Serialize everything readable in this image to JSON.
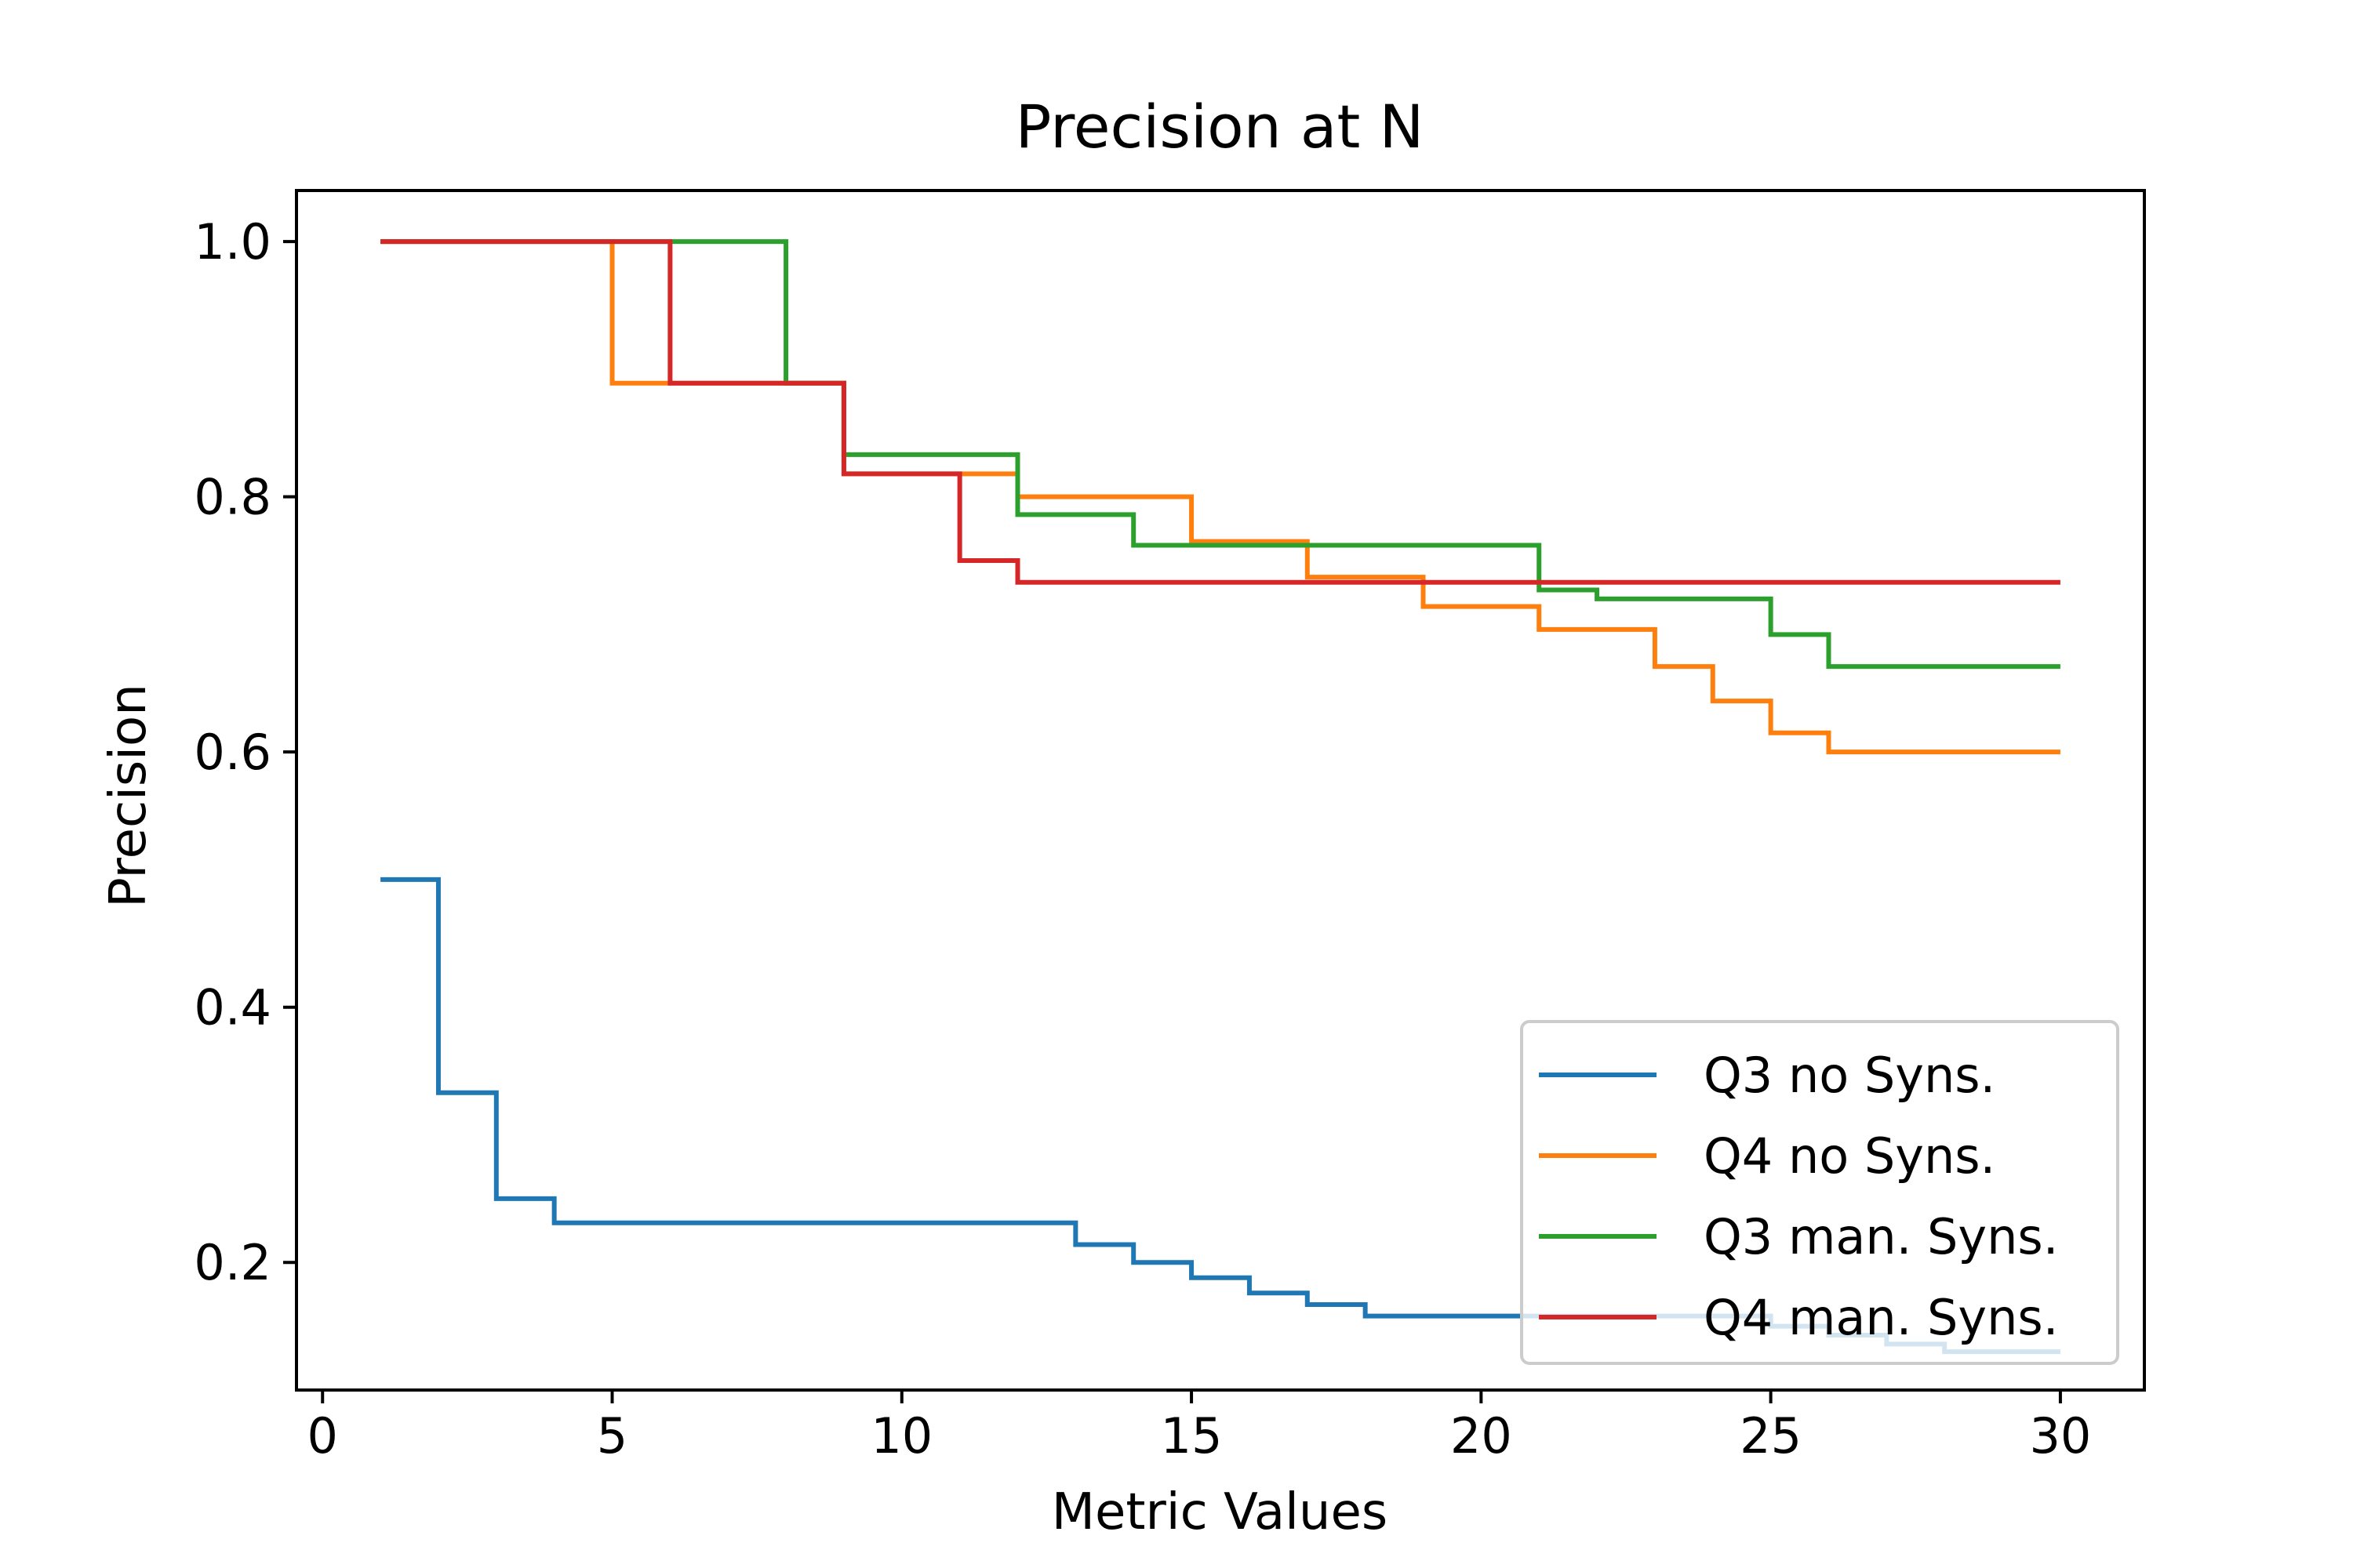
{
  "chart_data": {
    "type": "line",
    "drawstyle": "steps-post",
    "title": "Precision at N",
    "xlabel": "Metric Values",
    "ylabel": "Precision",
    "xlim": [
      -0.45,
      31.45
    ],
    "ylim": [
      0.1,
      1.04
    ],
    "xticks": [
      0,
      5,
      10,
      15,
      20,
      25,
      30
    ],
    "yticks": [
      0.2,
      0.4,
      0.6,
      0.8,
      1.0
    ],
    "x": [
      1,
      2,
      3,
      4,
      5,
      6,
      7,
      8,
      9,
      10,
      11,
      12,
      13,
      14,
      15,
      16,
      17,
      18,
      19,
      20,
      21,
      22,
      23,
      24,
      25,
      26,
      27,
      28,
      29,
      30
    ],
    "series": [
      {
        "name": "Q3 no Syns.",
        "color": "#1f77b4",
        "values": [
          0.5,
          0.333,
          0.25,
          0.231,
          0.231,
          0.231,
          0.231,
          0.231,
          0.231,
          0.231,
          0.231,
          0.231,
          0.214,
          0.2,
          0.188,
          0.176,
          0.167,
          0.158,
          0.158,
          0.158,
          0.158,
          0.158,
          0.158,
          0.158,
          0.15,
          0.143,
          0.136,
          0.13,
          0.13,
          0.13
        ]
      },
      {
        "name": "Q4 no Syns.",
        "color": "#ff7f0e",
        "values": [
          1.0,
          1.0,
          1.0,
          1.0,
          0.889,
          0.889,
          0.889,
          0.889,
          0.818,
          0.818,
          0.818,
          0.8,
          0.8,
          0.8,
          0.765,
          0.765,
          0.737,
          0.737,
          0.714,
          0.714,
          0.696,
          0.696,
          0.667,
          0.64,
          0.615,
          0.6,
          0.6,
          0.6,
          0.6,
          0.6
        ]
      },
      {
        "name": "Q3 man. Syns.",
        "color": "#2ca02c",
        "values": [
          1.0,
          1.0,
          1.0,
          1.0,
          1.0,
          1.0,
          1.0,
          0.889,
          0.833,
          0.833,
          0.833,
          0.786,
          0.786,
          0.762,
          0.762,
          0.762,
          0.762,
          0.762,
          0.762,
          0.762,
          0.727,
          0.72,
          0.72,
          0.72,
          0.692,
          0.667,
          0.667,
          0.667,
          0.667,
          0.667
        ]
      },
      {
        "name": "Q4 man. Syns.",
        "color": "#d62728",
        "values": [
          1.0,
          1.0,
          1.0,
          1.0,
          1.0,
          0.889,
          0.889,
          0.889,
          0.818,
          0.818,
          0.75,
          0.733,
          0.733,
          0.733,
          0.733,
          0.733,
          0.733,
          0.733,
          0.733,
          0.733,
          0.733,
          0.733,
          0.733,
          0.733,
          0.733,
          0.733,
          0.733,
          0.733,
          0.733,
          0.733
        ]
      }
    ],
    "legend": {
      "position": "lower-right",
      "alpha": 0.8
    },
    "grid": false
  }
}
